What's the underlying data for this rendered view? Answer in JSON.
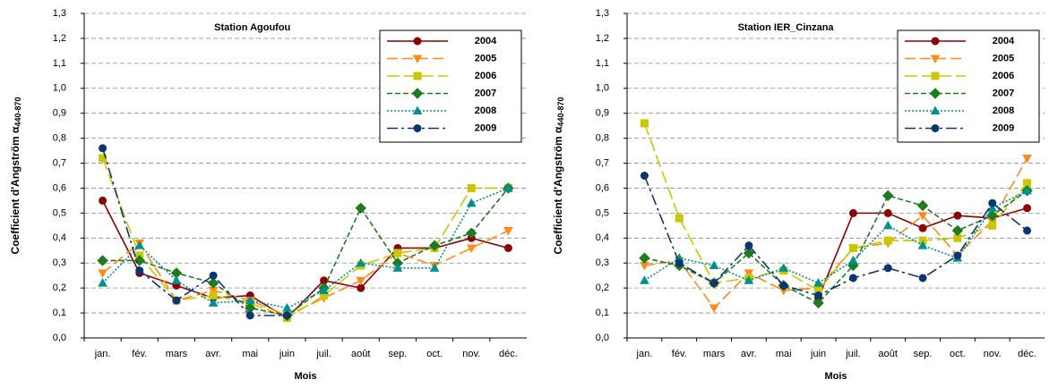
{
  "chart_data": [
    {
      "type": "line",
      "title": "Station Agoufou",
      "xlabel": "Mois",
      "ylabel": "Coefficient d'Angström α",
      "ylabel_sub": "440-870",
      "categories": [
        "jan.",
        "fév.",
        "mars",
        "avr.",
        "mai",
        "juin",
        "juil.",
        "août",
        "sep.",
        "oct.",
        "nov.",
        "déc."
      ],
      "ylim": [
        0,
        1.3
      ],
      "yticks": [
        {
          "value": 0,
          "label": "0,0"
        },
        {
          "value": 0.1,
          "label": "0,1"
        },
        {
          "value": 0.2,
          "label": "0,2"
        },
        {
          "value": 0.3,
          "label": "0,3"
        },
        {
          "value": 0.4,
          "label": "0,4"
        },
        {
          "value": 0.5,
          "label": "0,5"
        },
        {
          "value": 0.6,
          "label": "0,6"
        },
        {
          "value": 0.7,
          "label": "0,7"
        },
        {
          "value": 0.8,
          "label": "0,8"
        },
        {
          "value": 0.9,
          "label": "0,9"
        },
        {
          "value": 1.0,
          "label": "1,0"
        },
        {
          "value": 1.1,
          "label": "1,1"
        },
        {
          "value": 1.2,
          "label": "1,2"
        },
        {
          "value": 1.3,
          "label": "1,3"
        }
      ],
      "grid": true,
      "legend": "upper right",
      "series": [
        {
          "name": "2004",
          "color": "#8b0000",
          "marker": "circle",
          "dash": "none",
          "values": [
            0.55,
            0.26,
            0.21,
            0.16,
            0.17,
            0.08,
            0.23,
            0.2,
            0.36,
            0.36,
            0.4,
            0.36
          ]
        },
        {
          "name": "2005",
          "color": "#ff8c1a",
          "marker": "triangle-down",
          "dash": "12,5",
          "values": [
            0.26,
            0.38,
            0.15,
            0.19,
            0.15,
            0.09,
            0.16,
            0.23,
            0.34,
            0.29,
            0.36,
            0.43
          ]
        },
        {
          "name": "2006",
          "color": "#c8c800",
          "marker": "square",
          "dash": "14,5",
          "values": [
            0.72,
            0.33,
            0.15,
            0.17,
            0.14,
            0.08,
            0.17,
            0.29,
            0.34,
            0.36,
            0.6,
            0.6
          ]
        },
        {
          "name": "2007",
          "color": "#1e7b1e",
          "marker": "diamond",
          "dash": "6,3",
          "values": [
            0.31,
            0.31,
            0.26,
            0.22,
            0.12,
            0.09,
            0.2,
            0.52,
            0.3,
            0.37,
            0.42,
            0.6
          ]
        },
        {
          "name": "2008",
          "color": "#009090",
          "marker": "triangle-up",
          "dash": "2,2",
          "values": [
            0.22,
            0.37,
            0.23,
            0.14,
            0.15,
            0.12,
            0.19,
            0.3,
            0.28,
            0.28,
            0.54,
            0.6
          ]
        },
        {
          "name": "2009",
          "color": "#0d3570",
          "marker": "circle",
          "dash": "12,4,3,4",
          "values": [
            0.76,
            0.27,
            0.15,
            0.25,
            0.09,
            0.09,
            null,
            null,
            null,
            null,
            null,
            null
          ]
        }
      ]
    },
    {
      "type": "line",
      "title": "Station IER_Cinzana",
      "xlabel": "Mois",
      "ylabel": "Coefficient d'Angström α",
      "ylabel_sub": "440-870",
      "categories": [
        "jan.",
        "fév.",
        "mars",
        "avr.",
        "mai",
        "juin",
        "juil.",
        "août",
        "sep.",
        "oct.",
        "nov.",
        "déc."
      ],
      "ylim": [
        0,
        1.3
      ],
      "yticks": [
        {
          "value": 0,
          "label": "0,0"
        },
        {
          "value": 0.1,
          "label": "0,1"
        },
        {
          "value": 0.2,
          "label": "0,2"
        },
        {
          "value": 0.3,
          "label": "0,3"
        },
        {
          "value": 0.4,
          "label": "0,4"
        },
        {
          "value": 0.5,
          "label": "0,5"
        },
        {
          "value": 0.6,
          "label": "0,6"
        },
        {
          "value": 0.7,
          "label": "0,7"
        },
        {
          "value": 0.8,
          "label": "0,8"
        },
        {
          "value": 0.9,
          "label": "0,9"
        },
        {
          "value": 1.0,
          "label": "1,0"
        },
        {
          "value": 1.1,
          "label": "1,1"
        },
        {
          "value": 1.2,
          "label": "1,2"
        },
        {
          "value": 1.3,
          "label": "1,3"
        }
      ],
      "grid": true,
      "legend": "upper right",
      "series": [
        {
          "name": "2004",
          "color": "#8b0000",
          "marker": "circle",
          "dash": "none",
          "values": [
            null,
            null,
            null,
            null,
            null,
            0.16,
            0.5,
            0.5,
            0.44,
            0.49,
            0.48,
            0.52
          ]
        },
        {
          "name": "2005",
          "color": "#ff8c1a",
          "marker": "triangle-down",
          "dash": "12,5",
          "values": [
            0.29,
            0.31,
            0.12,
            0.26,
            0.19,
            0.2,
            0.36,
            0.38,
            0.49,
            0.33,
            0.47,
            0.72
          ]
        },
        {
          "name": "2006",
          "color": "#c8c800",
          "marker": "square",
          "dash": "14,5",
          "values": [
            0.86,
            0.48,
            0.22,
            0.24,
            0.27,
            0.19,
            0.36,
            0.39,
            0.39,
            0.4,
            0.45,
            0.62
          ]
        },
        {
          "name": "2007",
          "color": "#1e7b1e",
          "marker": "diamond",
          "dash": "6,3",
          "values": [
            0.32,
            0.29,
            0.22,
            0.34,
            0.21,
            0.14,
            0.29,
            0.57,
            0.53,
            0.43,
            0.49,
            0.59
          ]
        },
        {
          "name": "2008",
          "color": "#009090",
          "marker": "triangle-up",
          "dash": "2,2",
          "values": [
            0.23,
            0.32,
            0.29,
            0.23,
            0.28,
            0.22,
            0.31,
            0.45,
            0.37,
            0.32,
            0.52,
            0.59
          ]
        },
        {
          "name": "2009",
          "color": "#0d3570",
          "marker": "circle",
          "dash": "12,4,3,4",
          "values": [
            0.65,
            0.3,
            0.22,
            0.37,
            0.21,
            0.17,
            0.24,
            0.28,
            0.24,
            0.33,
            0.54,
            0.43
          ]
        }
      ]
    }
  ]
}
